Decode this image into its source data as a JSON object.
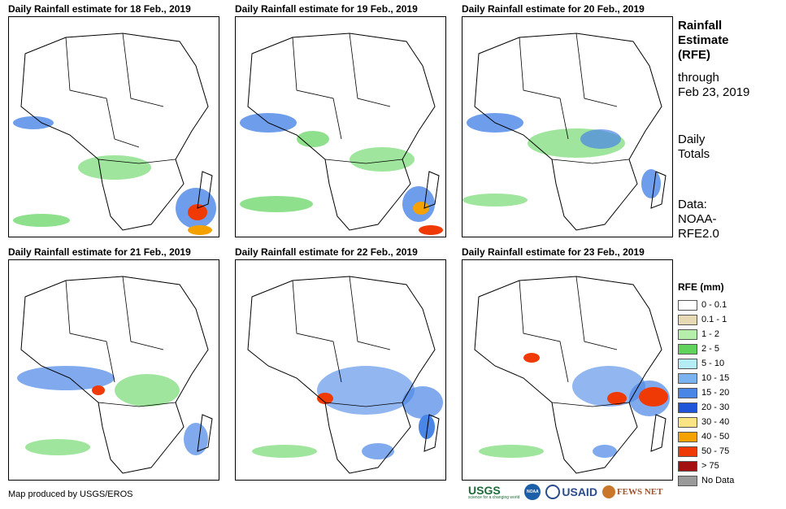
{
  "panels": [
    {
      "title": "Daily Rainfall estimate for 18 Feb., 2019"
    },
    {
      "title": "Daily Rainfall estimate for 19 Feb., 2019"
    },
    {
      "title": "Daily Rainfall estimate for 20 Feb., 2019"
    },
    {
      "title": "Daily Rainfall estimate for 21 Feb., 2019"
    },
    {
      "title": "Daily Rainfall estimate for 22 Feb., 2019"
    },
    {
      "title": "Daily Rainfall estimate for 23 Feb., 2019"
    }
  ],
  "side": {
    "title_line1": "Rainfall",
    "title_line2": "Estimate",
    "title_line3": "(RFE)",
    "through_label": "through",
    "through_date": "Feb 23, 2019",
    "totals_line1": "Daily",
    "totals_line2": "Totals",
    "data_line1": "Data:",
    "data_line2": "NOAA-",
    "data_line3": "RFE2.0"
  },
  "legend": {
    "title": "RFE (mm)",
    "items": [
      {
        "label": "0 - 0.1",
        "color": "#ffffff"
      },
      {
        "label": "0.1 - 1",
        "color": "#e8d9b5"
      },
      {
        "label": "1 - 2",
        "color": "#b6eeab"
      },
      {
        "label": "2 - 5",
        "color": "#5fd35b"
      },
      {
        "label": "5 - 10",
        "color": "#b4eef4"
      },
      {
        "label": "10 - 15",
        "color": "#7ab3ef"
      },
      {
        "label": "15 - 20",
        "color": "#4a86e6"
      },
      {
        "label": "20 - 30",
        "color": "#1f55d8"
      },
      {
        "label": "30 - 40",
        "color": "#fbe483"
      },
      {
        "label": "40 - 50",
        "color": "#f5a100"
      },
      {
        "label": "50 - 75",
        "color": "#f03a06"
      },
      {
        "label": "> 75",
        "color": "#a41010"
      },
      {
        "label": "No Data",
        "color": "#9a9a9a"
      }
    ]
  },
  "credit": "Map produced by USGS/EROS",
  "logos": {
    "usgs": "USGS",
    "usgs_tagline": "science for a changing world",
    "noaa": "NOAA",
    "usaid": "USAID",
    "fewsnet": "FEWS NET"
  }
}
